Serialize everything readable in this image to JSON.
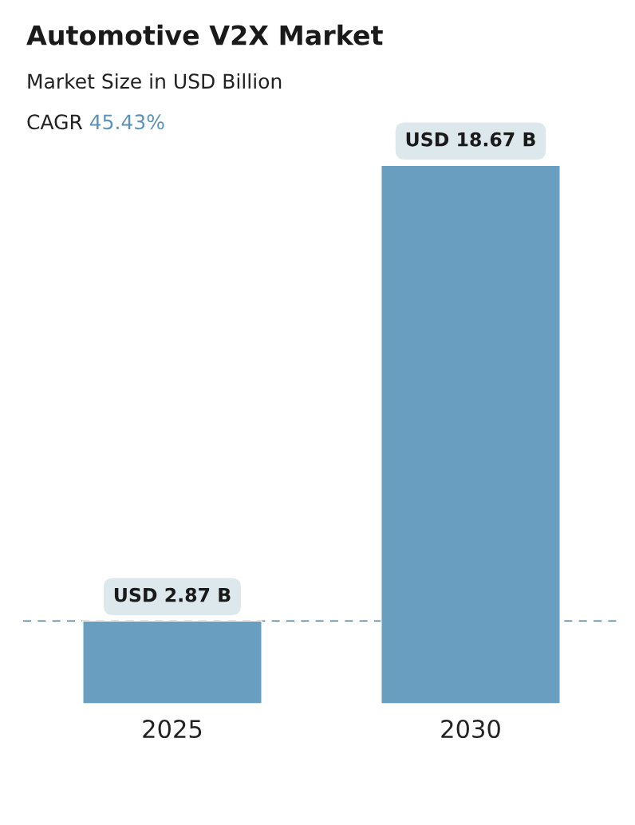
{
  "chart_data": {
    "type": "bar",
    "title": "Automotive V2X Market",
    "subtitle": "Market Size in USD Billion",
    "annotations": [
      "CAGR 45.43%"
    ],
    "categories": [
      "2025",
      "2030"
    ],
    "values": [
      2.87,
      18.67
    ],
    "colors": [
      "#6a9ec0",
      "#6a9ec0"
    ],
    "value_labels": [
      "USD 2.87 B",
      "USD 18.67 B"
    ],
    "ref_lines": [
      {
        "axis": "y",
        "value": 2.87,
        "label": null,
        "color": "#5a7d99",
        "line_style": "dashed"
      }
    ],
    "grid": false,
    "legend": false
  }
}
